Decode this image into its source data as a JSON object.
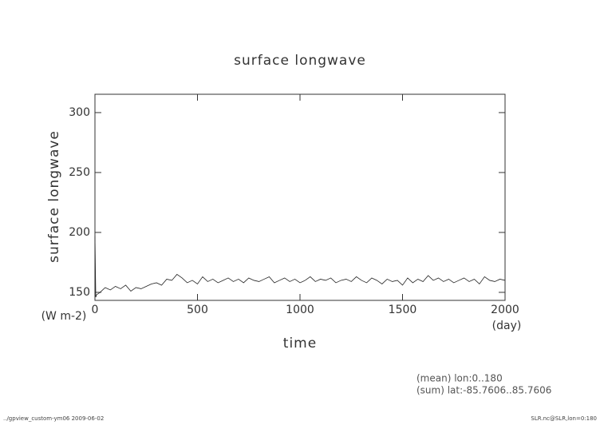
{
  "chart_data": {
    "type": "line",
    "title": "surface longwave",
    "y_label": "surface longwave",
    "y_unit": "(W m-2)",
    "x_label": "time",
    "x_unit": "(day)",
    "annotations": [
      "(mean) lon:0..180",
      "(sum) lat:-85.7606..85.7606"
    ],
    "footer_left": "../gpview_custom-ym06  2009-06-02",
    "footer_right": "SLR.nc@SLR,lon=0:180",
    "color": "#222222",
    "xlim": [
      0,
      2000
    ],
    "xticks": [
      0,
      500,
      1000,
      1500,
      2000
    ],
    "ylim": [
      143.3,
      315.3
    ],
    "yticks": [
      150,
      200,
      250,
      300
    ],
    "x": [
      0,
      4,
      8,
      25,
      50,
      75,
      100,
      125,
      150,
      175,
      200,
      225,
      250,
      275,
      300,
      325,
      350,
      375,
      400,
      425,
      450,
      475,
      500,
      525,
      550,
      575,
      600,
      625,
      650,
      675,
      700,
      725,
      750,
      775,
      800,
      825,
      850,
      875,
      900,
      925,
      950,
      975,
      1000,
      1025,
      1050,
      1075,
      1100,
      1125,
      1150,
      1175,
      1200,
      1225,
      1250,
      1275,
      1300,
      1325,
      1350,
      1375,
      1400,
      1425,
      1450,
      1475,
      1500,
      1525,
      1550,
      1575,
      1600,
      1625,
      1650,
      1675,
      1700,
      1725,
      1750,
      1775,
      1800,
      1825,
      1850,
      1875,
      1900,
      1925,
      1950,
      1975,
      2000
    ],
    "values": [
      197,
      146,
      148,
      150,
      154,
      152,
      155,
      153,
      156,
      151,
      154,
      153,
      155,
      157,
      158,
      156,
      161,
      160,
      165,
      162,
      158,
      160,
      157,
      163,
      159,
      161,
      158,
      160,
      162,
      159,
      161,
      158,
      162,
      160,
      159,
      161,
      163,
      158,
      160,
      162,
      159,
      161,
      158,
      160,
      163,
      159,
      161,
      160,
      162,
      158,
      160,
      161,
      159,
      163,
      160,
      158,
      162,
      160,
      157,
      161,
      159,
      160,
      156,
      162,
      158,
      161,
      159,
      164,
      160,
      162,
      159,
      161,
      158,
      160,
      162,
      159,
      161,
      157,
      163,
      160,
      159,
      161,
      160
    ]
  }
}
